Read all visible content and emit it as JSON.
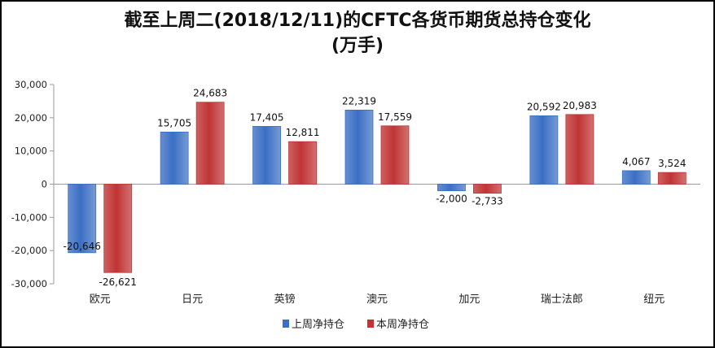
{
  "colors": {
    "series_1": "#3b6fc4",
    "series_2": "#c03434",
    "axis": "#9a9a9a",
    "background": "#ffffff"
  },
  "chart_data": {
    "type": "bar",
    "title": "截至上周二(2018/12/11)的CFTC各货币期货总持仓变化",
    "subtitle": "(万手)",
    "categories": [
      "欧元",
      "日元",
      "英镑",
      "澳元",
      "加元",
      "瑞士法郎",
      "纽元"
    ],
    "series": [
      {
        "name": "上周净持仓",
        "values": [
          -20646,
          15705,
          17405,
          22319,
          -2000,
          20592,
          4067
        ]
      },
      {
        "name": "本周净持仓",
        "values": [
          -26621,
          24683,
          12811,
          17559,
          -2733,
          20983,
          3524
        ]
      }
    ],
    "ylim": [
      -30000,
      30000
    ],
    "yticks": [
      "-30,000",
      "-20,000",
      "-10,000",
      "0",
      "10,000",
      "20,000",
      "30,000"
    ],
    "grid": false,
    "legend": "bottom"
  }
}
